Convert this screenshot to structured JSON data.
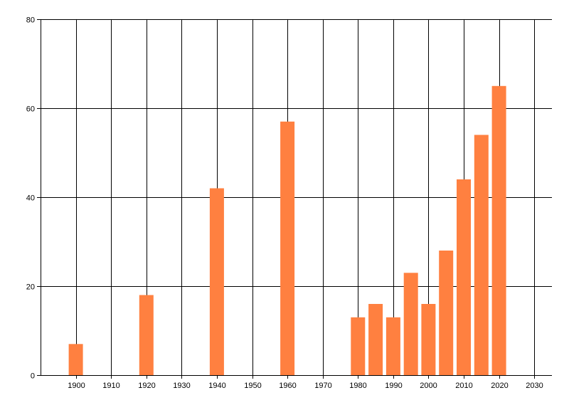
{
  "chart_data": {
    "type": "bar",
    "title": "",
    "xlabel": "",
    "ylabel": "",
    "x": [
      1900,
      1920,
      1940,
      1960,
      1980,
      1985,
      1990,
      1995,
      2000,
      2005,
      2010,
      2015,
      2020
    ],
    "values": [
      7,
      18,
      42,
      57,
      13,
      16,
      13,
      23,
      16,
      28,
      44,
      54,
      65
    ],
    "xlim": [
      1890,
      2035
    ],
    "ylim": [
      0,
      80
    ],
    "xticks": [
      "1900",
      "1910",
      "1920",
      "1930",
      "1940",
      "1950",
      "1960",
      "1970",
      "1980",
      "1990",
      "2000",
      "2010",
      "2020",
      "2030"
    ],
    "yticks": [
      "0",
      "20",
      "40",
      "60",
      "80"
    ],
    "grid": true,
    "bar_color": "#ff8040",
    "grid_color": "#000000"
  }
}
